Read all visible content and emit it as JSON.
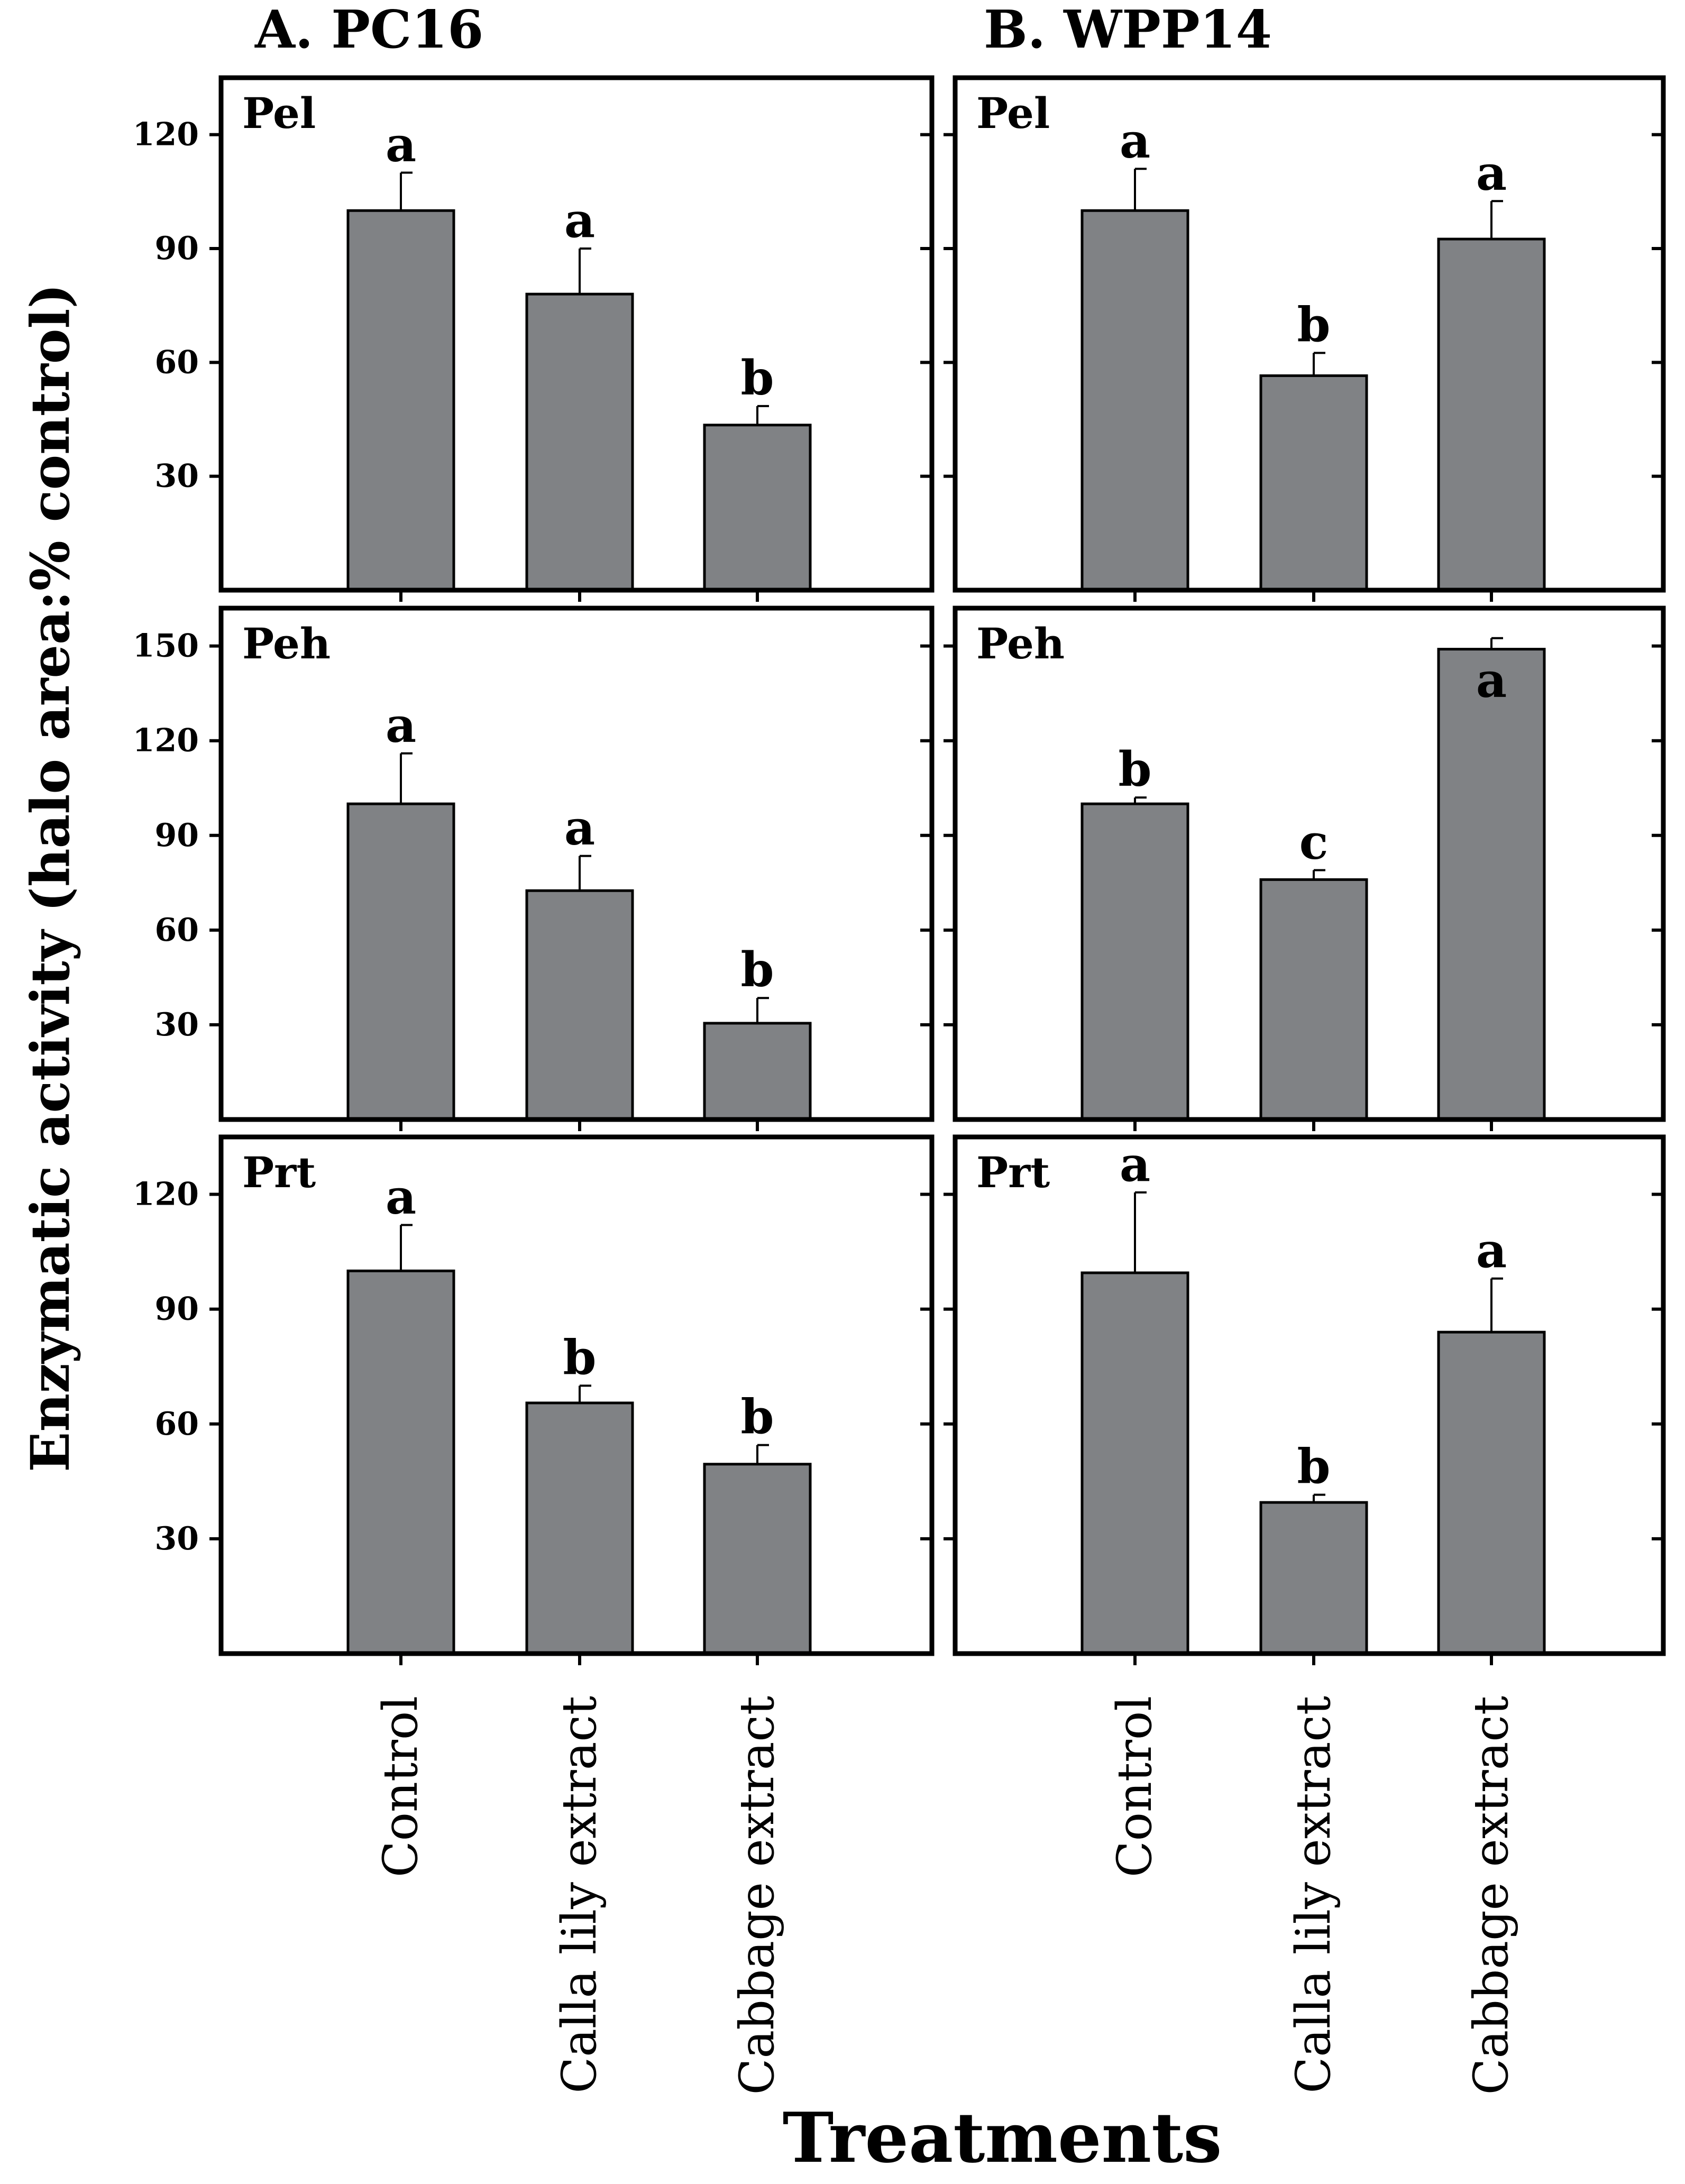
{
  "figure": {
    "ylabel": "Enzymatic activity (halo area:% control)",
    "xlabel": "Treatments",
    "bar_color": "#808285"
  },
  "chart_data": [
    {
      "type": "bar",
      "column": "A. PC16",
      "panel": "Pel",
      "categories": [
        "Control",
        "Calla lily extract",
        "Cabbage extract"
      ],
      "values": [
        100,
        78,
        43.5
      ],
      "errors": [
        10,
        12,
        5
      ],
      "letters": [
        "a",
        "a",
        "b"
      ],
      "yticks": [
        30,
        60,
        90,
        120
      ],
      "ylim": [
        0,
        135
      ]
    },
    {
      "type": "bar",
      "column": "B. WPP14",
      "panel": "Pel",
      "categories": [
        "Control",
        "Calla lily extract",
        "Cabbage extract"
      ],
      "values": [
        100,
        56.5,
        92.5
      ],
      "errors": [
        11,
        6,
        10
      ],
      "letters": [
        "a",
        "b",
        "a"
      ],
      "yticks": [
        30,
        60,
        90,
        120
      ],
      "ylim": [
        0,
        135
      ]
    },
    {
      "type": "bar",
      "column": "A. PC16",
      "panel": "Peh",
      "categories": [
        "Control",
        "Calla lily extract",
        "Cabbage extract"
      ],
      "values": [
        100,
        72.5,
        30.5
      ],
      "errors": [
        16,
        11,
        8
      ],
      "letters": [
        "a",
        "a",
        "b"
      ],
      "yticks": [
        30,
        60,
        90,
        120,
        150
      ],
      "ylim": [
        0,
        162
      ]
    },
    {
      "type": "bar",
      "column": "B. WPP14",
      "panel": "Peh",
      "categories": [
        "Control",
        "Calla lily extract",
        "Cabbage extract"
      ],
      "values": [
        100,
        76,
        149
      ],
      "errors": [
        2,
        3,
        3.5
      ],
      "letters": [
        "b",
        "c",
        "a"
      ],
      "yticks": [
        30,
        60,
        90,
        120,
        150
      ],
      "ylim": [
        0,
        162
      ]
    },
    {
      "type": "bar",
      "column": "A. PC16",
      "panel": "Prt",
      "categories": [
        "Control",
        "Calla lily extract",
        "Cabbage extract"
      ],
      "values": [
        100,
        65.5,
        49.5
      ],
      "errors": [
        12,
        4.5,
        5
      ],
      "letters": [
        "a",
        "b",
        "b"
      ],
      "yticks": [
        30,
        60,
        90,
        120
      ],
      "ylim": [
        0,
        135
      ]
    },
    {
      "type": "bar",
      "column": "B. WPP14",
      "panel": "Prt",
      "categories": [
        "Control",
        "Calla lily extract",
        "Cabbage extract"
      ],
      "values": [
        99.5,
        39.5,
        84
      ],
      "errors": [
        21,
        2,
        14
      ],
      "letters": [
        "a",
        "b",
        "a"
      ],
      "yticks": [
        30,
        60,
        90,
        120
      ],
      "ylim": [
        0,
        135
      ]
    }
  ]
}
